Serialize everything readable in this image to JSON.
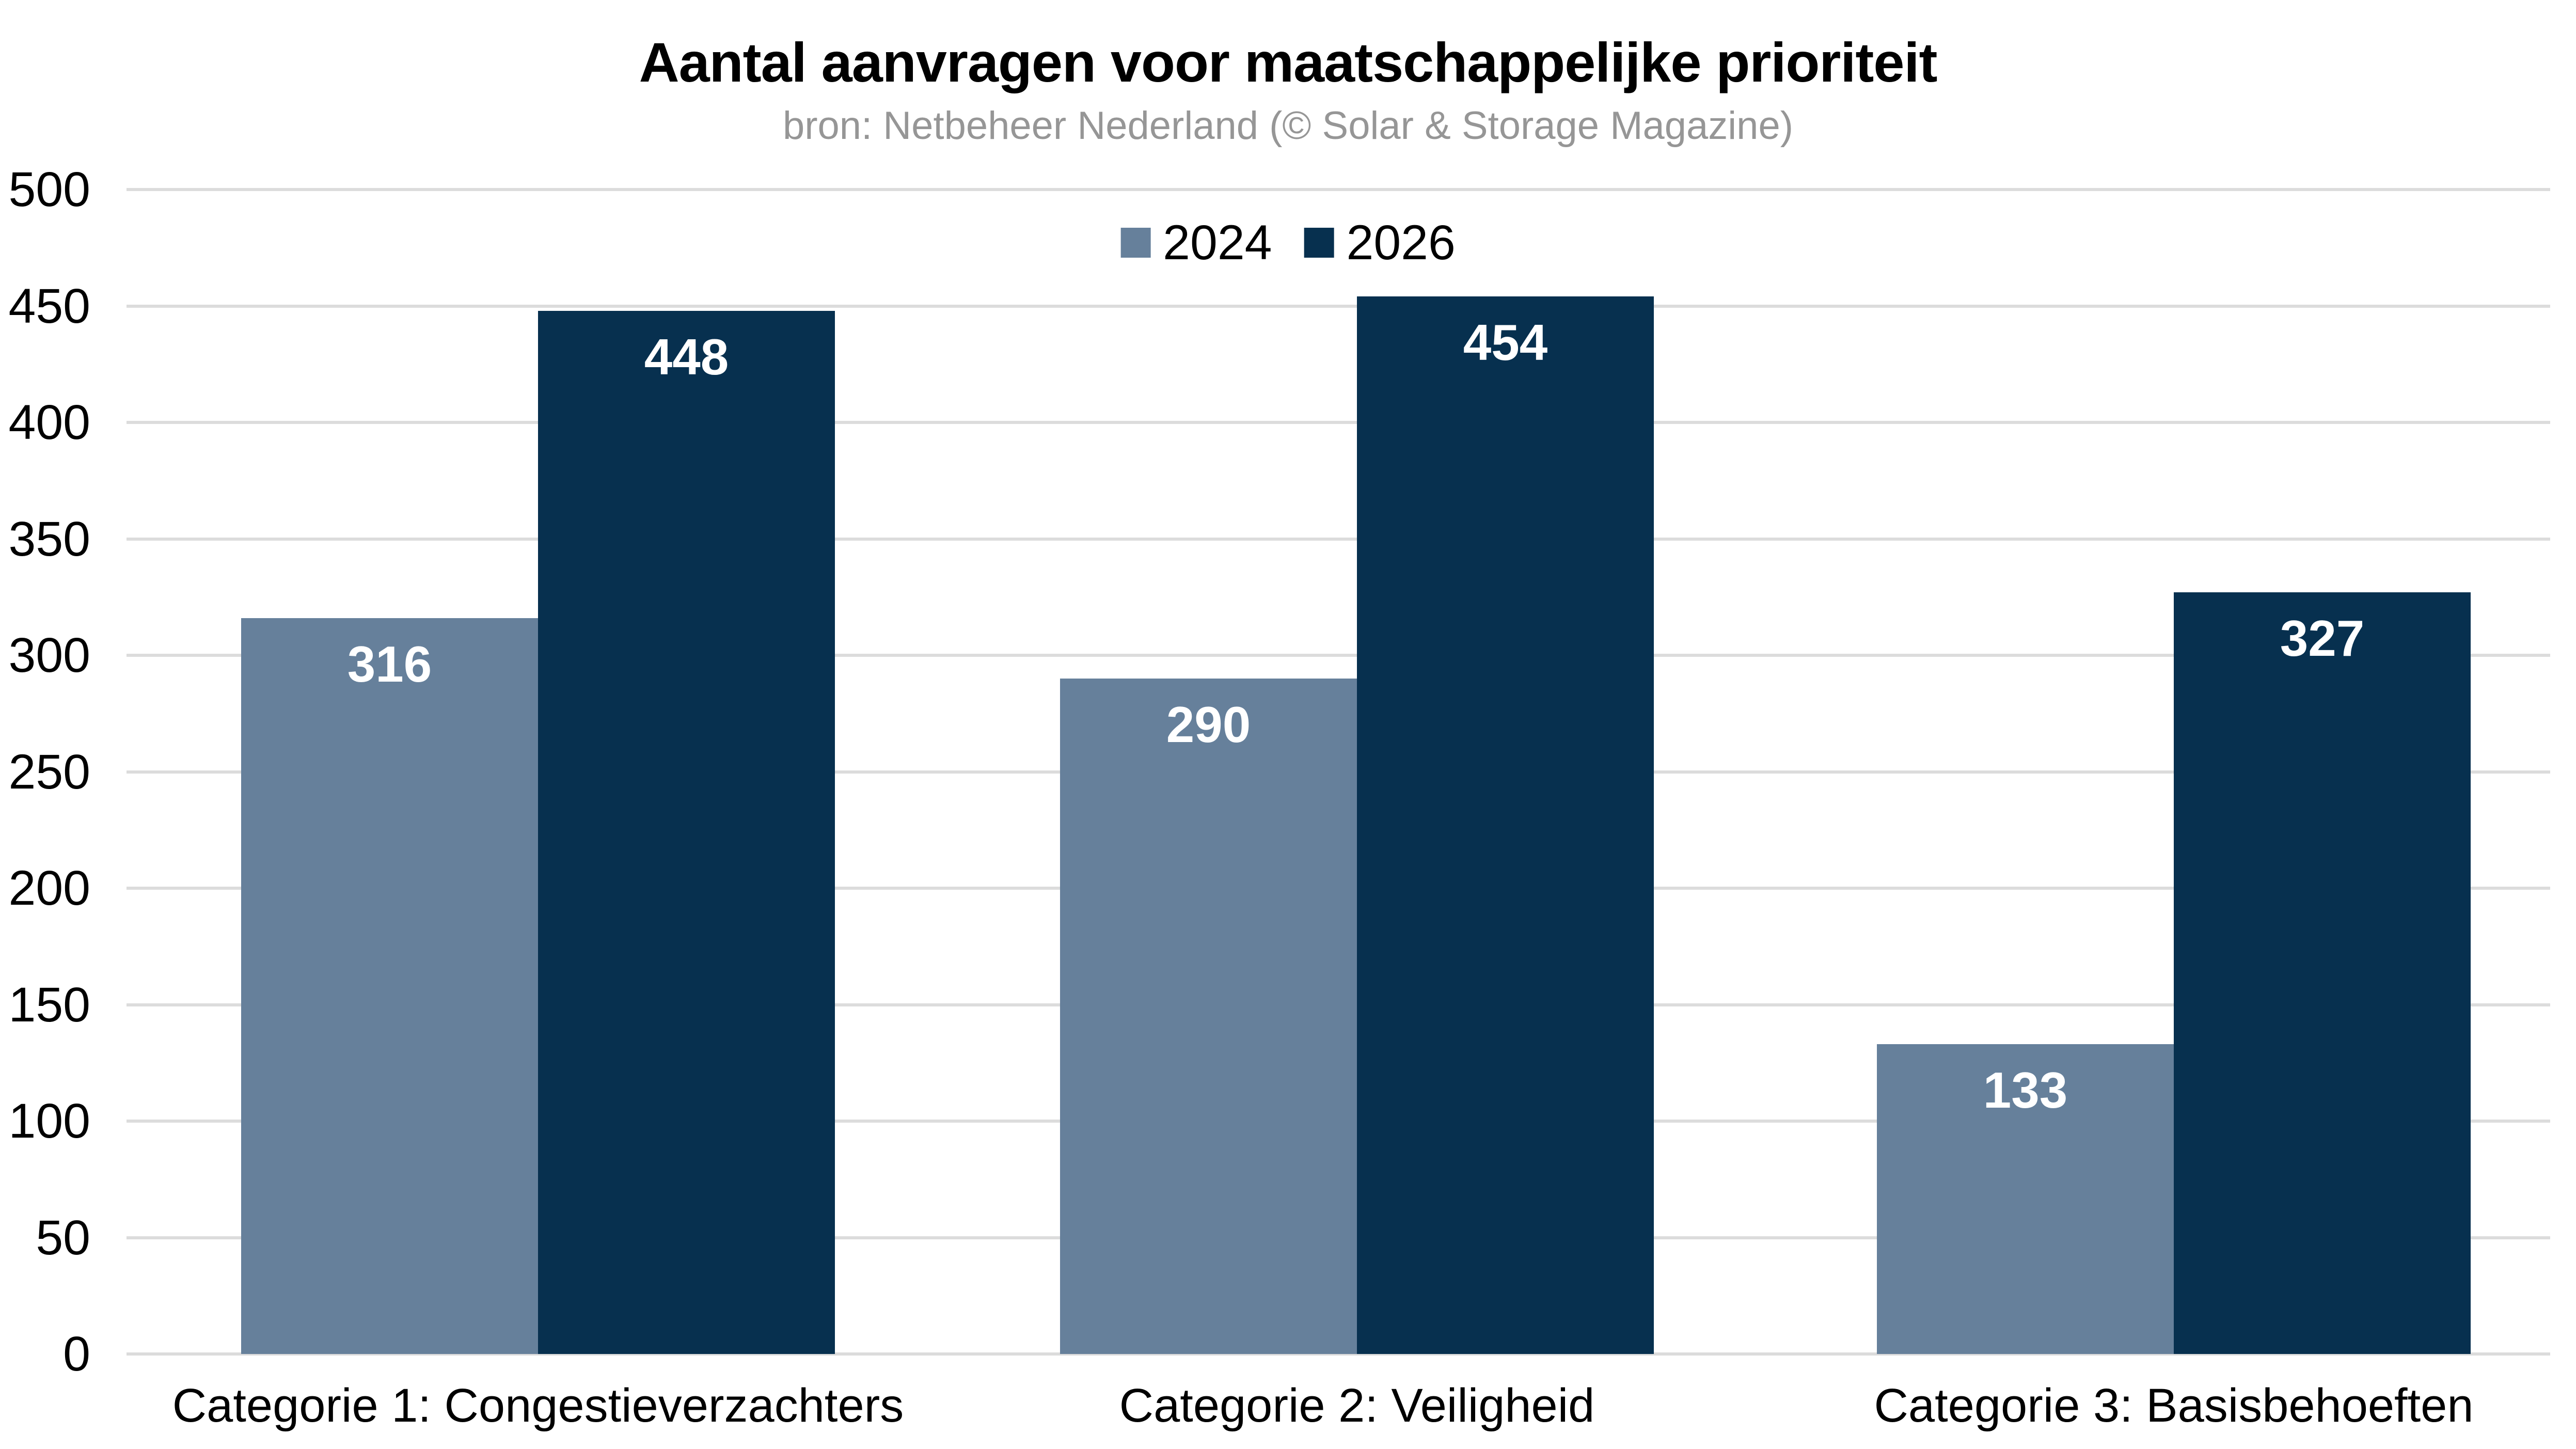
{
  "chart_data": {
    "type": "bar",
    "title": "Aantal aanvragen voor maatschappelijke prioriteit",
    "subtitle": "bron: Netbeheer Nederland (© Solar & Storage Magazine)",
    "categories": [
      "Categorie 1: Congestieverzachters",
      "Categorie 2: Veiligheid",
      "Categorie 3: Basisbehoeften"
    ],
    "series": [
      {
        "name": "2024",
        "color": "#66809B",
        "values": [
          316,
          290,
          133
        ]
      },
      {
        "name": "2026",
        "color": "#07304F",
        "values": [
          448,
          454,
          327
        ]
      }
    ],
    "xlabel": "",
    "ylabel": "",
    "ylim": [
      0,
      500
    ],
    "yticks": [
      0,
      50,
      100,
      150,
      200,
      250,
      300,
      350,
      400,
      450,
      500
    ],
    "grid": "horizontal",
    "legend_position": "top-center",
    "value_labels": "inside-top",
    "colors": {
      "background": "#FFFFFF",
      "gridline": "#DCDCDC",
      "title": "#000000",
      "subtitle": "#969696",
      "tick_label": "#000000",
      "category_label": "#000000",
      "value_label": "#FFFFFF"
    }
  }
}
